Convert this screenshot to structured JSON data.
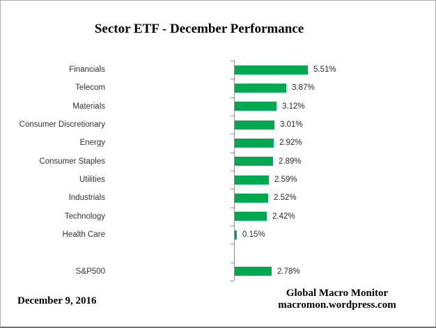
{
  "title": "Sector ETF - December Performance",
  "footer": {
    "date": "December 9, 2016",
    "attribution_line1": "Global Macro Monitor",
    "attribution_line2": "macromon.wordpress.com"
  },
  "colors": {
    "bar": "#00a950",
    "axis": "#8c8c8c",
    "label_text": "#303030",
    "value_text": "#262626"
  },
  "chart_data": {
    "type": "bar",
    "orientation": "horizontal",
    "title": "Sector ETF - December Performance",
    "categories": [
      "Financials",
      "Telecom",
      "Materials",
      "Consumer Discretionary",
      "Energy",
      "Consumer Staples",
      "Utilities",
      "Industrials",
      "Technology",
      "Health Care",
      "",
      "S&P500"
    ],
    "values": [
      5.51,
      3.87,
      3.12,
      3.01,
      2.92,
      2.89,
      2.59,
      2.52,
      2.42,
      0.15,
      null,
      2.78
    ],
    "value_labels": [
      "5.51%",
      "3.87%",
      "3.12%",
      "3.01%",
      "2.92%",
      "2.89%",
      "2.59%",
      "2.52%",
      "2.42%",
      "0.15%",
      "",
      "2.78%"
    ],
    "unit": "%",
    "xlim": [
      0,
      6
    ],
    "grid": false,
    "legend": false,
    "value_labels_position": "end-of-bar"
  }
}
